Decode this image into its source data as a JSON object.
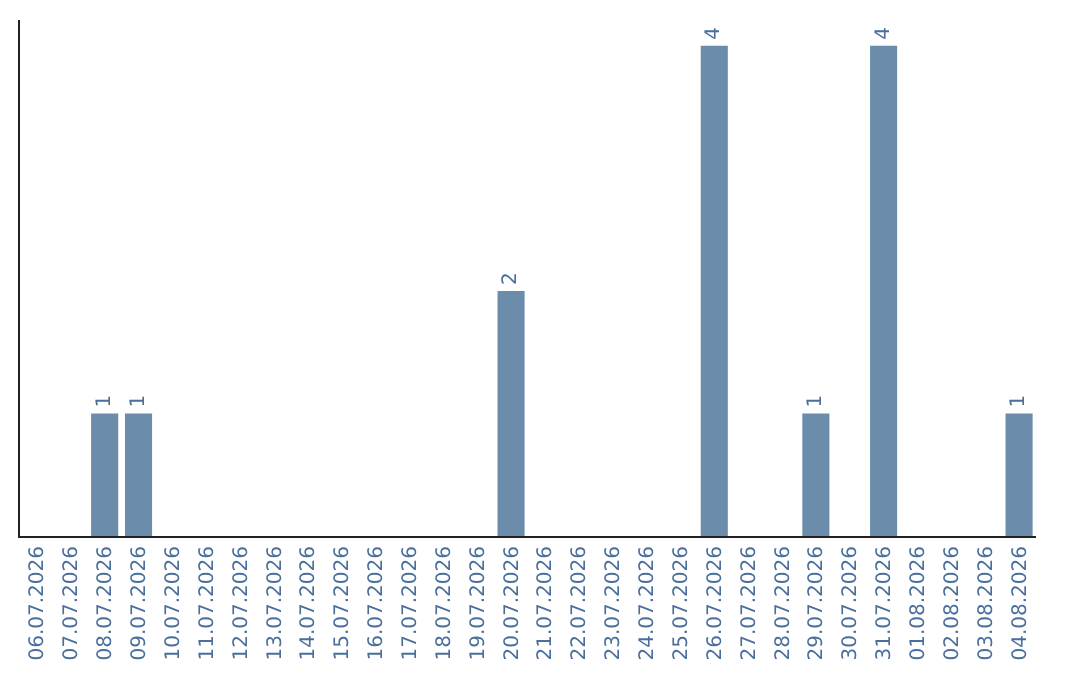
{
  "chart_data": {
    "type": "bar",
    "categories": [
      "06.07.2026",
      "07.07.2026",
      "08.07.2026",
      "09.07.2026",
      "10.07.2026",
      "11.07.2026",
      "12.07.2026",
      "13.07.2026",
      "14.07.2026",
      "15.07.2026",
      "16.07.2026",
      "17.07.2026",
      "18.07.2026",
      "19.07.2026",
      "20.07.2026",
      "21.07.2026",
      "22.07.2026",
      "23.07.2026",
      "24.07.2026",
      "25.07.2026",
      "26.07.2026",
      "27.07.2026",
      "28.07.2026",
      "29.07.2026",
      "30.07.2026",
      "31.07.2026",
      "01.08.2026",
      "02.08.2026",
      "03.08.2026",
      "04.08.2026"
    ],
    "values": [
      0,
      0,
      1,
      1,
      0,
      0,
      0,
      0,
      0,
      0,
      0,
      0,
      0,
      0,
      2,
      0,
      0,
      0,
      0,
      0,
      4,
      0,
      0,
      1,
      0,
      4,
      0,
      0,
      0,
      1
    ],
    "value_labels": [
      null,
      null,
      "1",
      "1",
      null,
      null,
      null,
      null,
      null,
      null,
      null,
      null,
      null,
      null,
      "2",
      null,
      null,
      null,
      null,
      null,
      "4",
      null,
      null,
      "1",
      null,
      "4",
      null,
      null,
      null,
      "1"
    ],
    "color": "#6b8cab"
  }
}
